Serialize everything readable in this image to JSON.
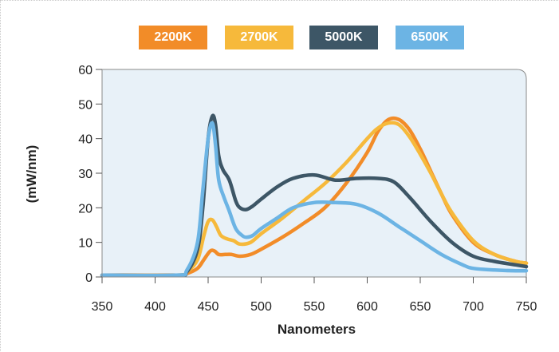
{
  "chart_data": {
    "type": "line",
    "title": "",
    "xlabel": "Nanometers",
    "ylabel": "(mW/nm)",
    "xlim": [
      350,
      750
    ],
    "ylim": [
      0,
      60
    ],
    "xticks": [
      350,
      400,
      450,
      500,
      550,
      600,
      650,
      700,
      750
    ],
    "yticks": [
      0,
      10,
      20,
      30,
      40,
      50,
      60
    ],
    "grid": false,
    "legend_position": "top-center",
    "background_color": "#e8f1f8",
    "series": [
      {
        "name": "2200K",
        "color": "#f28c28",
        "x": [
          350,
          420,
          430,
          440,
          446,
          452,
          456,
          460,
          466,
          472,
          480,
          490,
          500,
          520,
          540,
          560,
          580,
          600,
          610,
          620,
          630,
          640,
          650,
          660,
          670,
          680,
          700,
          720,
          740,
          750
        ],
        "y": [
          0.5,
          0.5,
          1.0,
          2.5,
          5.0,
          7.5,
          7.5,
          6.5,
          6.5,
          6.5,
          6.0,
          6.5,
          8.0,
          11.5,
          15.5,
          20.0,
          27.0,
          36.0,
          42.0,
          45.5,
          45.5,
          42.5,
          37.0,
          30.5,
          24.0,
          18.0,
          10.0,
          6.5,
          4.5,
          4.0
        ]
      },
      {
        "name": "2700K",
        "color": "#f6b93b",
        "x": [
          350,
          420,
          430,
          440,
          446,
          450,
          454,
          458,
          462,
          468,
          474,
          480,
          490,
          500,
          520,
          540,
          560,
          580,
          600,
          610,
          620,
          630,
          640,
          650,
          660,
          670,
          680,
          700,
          720,
          740,
          750
        ],
        "y": [
          0.5,
          0.5,
          1.5,
          5.0,
          12.0,
          16.0,
          16.5,
          14.5,
          12.0,
          11.0,
          10.5,
          9.5,
          10.0,
          12.5,
          17.0,
          22.0,
          27.0,
          33.0,
          40.0,
          43.0,
          44.5,
          44.0,
          40.5,
          35.5,
          30.0,
          24.0,
          18.5,
          10.5,
          6.5,
          4.5,
          4.0
        ]
      },
      {
        "name": "5000K",
        "color": "#3d5666",
        "x": [
          350,
          420,
          430,
          440,
          445,
          450,
          454,
          457,
          460,
          464,
          470,
          476,
          480,
          486,
          492,
          500,
          515,
          530,
          550,
          570,
          590,
          610,
          625,
          640,
          660,
          680,
          700,
          720,
          740,
          750
        ],
        "y": [
          0.5,
          0.5,
          1.5,
          8.0,
          20.0,
          40.0,
          46.5,
          44.0,
          35.0,
          31.0,
          28.0,
          22.0,
          20.0,
          19.5,
          20.5,
          22.5,
          26.0,
          28.5,
          29.5,
          28.0,
          28.5,
          28.5,
          27.5,
          23.0,
          16.0,
          10.0,
          6.0,
          4.5,
          3.5,
          3.0
        ]
      },
      {
        "name": "6500K",
        "color": "#6cb4e4",
        "x": [
          350,
          420,
          430,
          440,
          445,
          450,
          454,
          457,
          460,
          465,
          470,
          476,
          482,
          486,
          492,
          500,
          515,
          530,
          550,
          570,
          590,
          610,
          630,
          650,
          670,
          690,
          700,
          720,
          740,
          750
        ],
        "y": [
          0.5,
          0.5,
          2.0,
          10.0,
          25.0,
          40.0,
          44.5,
          38.0,
          28.0,
          23.0,
          19.0,
          14.0,
          12.0,
          11.5,
          12.0,
          14.0,
          17.0,
          20.0,
          21.5,
          21.5,
          21.0,
          18.5,
          14.5,
          10.5,
          6.5,
          3.5,
          2.5,
          2.0,
          1.8,
          1.8
        ]
      }
    ]
  }
}
